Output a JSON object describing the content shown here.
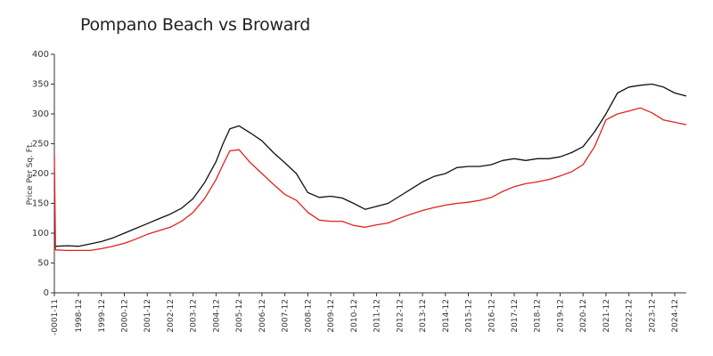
{
  "chart_data": {
    "type": "line",
    "title": "Pompano Beach vs Broward",
    "xlabel": "",
    "ylabel": "Price Per Sq. Ft.",
    "ylim": [
      0,
      400
    ],
    "yticks": [
      0,
      50,
      100,
      150,
      200,
      250,
      300,
      350,
      400
    ],
    "xticks": [
      "-0001-11",
      "1998-12",
      "1999-12",
      "2000-12",
      "2001-12",
      "2002-12",
      "2003-12",
      "2004-12",
      "2005-12",
      "2006-12",
      "2007-12",
      "2008-12",
      "2009-12",
      "2010-12",
      "2011-12",
      "2012-12",
      "2013-12",
      "2014-12",
      "2015-12",
      "2016-12",
      "2017-12",
      "2018-12",
      "2019-12",
      "2020-12",
      "2021-12",
      "2022-12",
      "2023-12",
      "2024-12"
    ],
    "grid": false,
    "legend": "none",
    "x": [
      -0.05,
      0,
      0.5,
      1,
      1.5,
      2,
      2.5,
      3,
      3.5,
      4,
      4.5,
      5,
      5.5,
      6,
      6.5,
      7,
      7.3,
      7.6,
      8,
      8.5,
      9,
      9.5,
      10,
      10.5,
      11,
      11.5,
      12,
      12.5,
      13,
      13.5,
      14,
      14.5,
      15,
      15.5,
      16,
      16.5,
      17,
      17.5,
      18,
      18.5,
      19,
      19.5,
      20,
      20.5,
      21,
      21.5,
      22,
      22.5,
      23,
      23.5,
      24,
      24.5,
      25,
      25.5,
      26,
      26.5,
      27,
      27.5
    ],
    "series": [
      {
        "color": "#111111",
        "values": [
          78,
          78,
          79,
          78,
          82,
          86,
          92,
          100,
          108,
          116,
          124,
          132,
          142,
          158,
          185,
          220,
          250,
          275,
          280,
          268,
          255,
          235,
          218,
          200,
          168,
          160,
          162,
          159,
          150,
          140,
          145,
          150,
          162,
          174,
          186,
          195,
          200,
          210,
          212,
          212,
          215,
          222,
          225,
          222,
          225,
          225,
          228,
          235,
          245,
          270,
          300,
          335,
          345,
          348,
          350,
          345,
          335,
          330
        ]
      },
      {
        "color": "#e02020",
        "values": [
          232,
          72,
          71,
          71,
          71,
          74,
          78,
          83,
          90,
          98,
          104,
          110,
          120,
          135,
          158,
          190,
          215,
          238,
          240,
          218,
          200,
          182,
          165,
          155,
          135,
          122,
          120,
          120,
          113,
          110,
          114,
          117,
          125,
          132,
          138,
          143,
          147,
          150,
          152,
          155,
          160,
          170,
          178,
          183,
          186,
          190,
          196,
          203,
          215,
          245,
          290,
          300,
          305,
          310,
          302,
          290,
          286,
          282
        ]
      }
    ]
  }
}
